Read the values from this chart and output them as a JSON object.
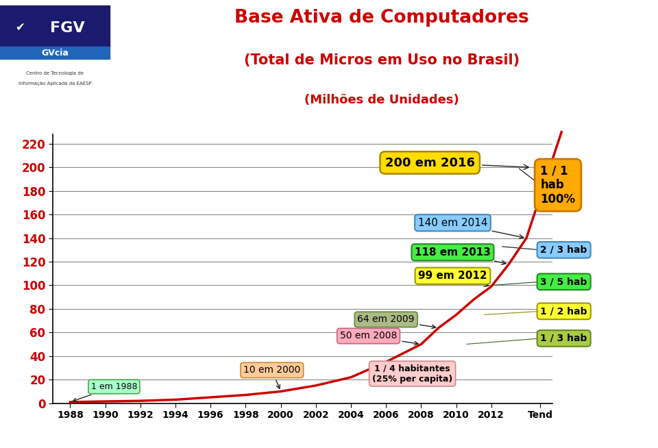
{
  "title_line1": "Base Ativa de Computadores",
  "title_line2": "(Total de Micros em Uso no Brasil)",
  "title_line3": "(Milhões de Unidades)",
  "title_color": "#cc0000",
  "bg_color": "#ffffff",
  "curve_color": "#cc0000",
  "curve_points_x": [
    1988,
    1990,
    1992,
    1994,
    1996,
    1998,
    2000,
    2002,
    2004,
    2006,
    2008,
    2009,
    2010,
    2011,
    2012,
    2013,
    2014,
    2016
  ],
  "curve_points_y": [
    1,
    1.5,
    2,
    3,
    5,
    7,
    10,
    15,
    22,
    35,
    50,
    64,
    75,
    88,
    99,
    118,
    140,
    230
  ],
  "xlim": [
    1987,
    2015.5
  ],
  "ylim": [
    0,
    228
  ],
  "yticks": [
    0,
    20,
    40,
    60,
    80,
    100,
    120,
    140,
    160,
    180,
    200,
    220
  ],
  "xtick_labels": [
    "1988",
    "1990",
    "1992",
    "1994",
    "1996",
    "1998",
    "2000",
    "2002",
    "2004",
    "2006",
    "2008",
    "2010",
    "2012",
    "Tend"
  ],
  "xtick_vals": [
    1988,
    1990,
    1992,
    1994,
    1996,
    1998,
    2000,
    2002,
    2004,
    2006,
    2008,
    2010,
    2012,
    2014.8
  ],
  "grid_color": "#888888",
  "ytick_color": "#cc0000",
  "xtick_color": "#000000"
}
